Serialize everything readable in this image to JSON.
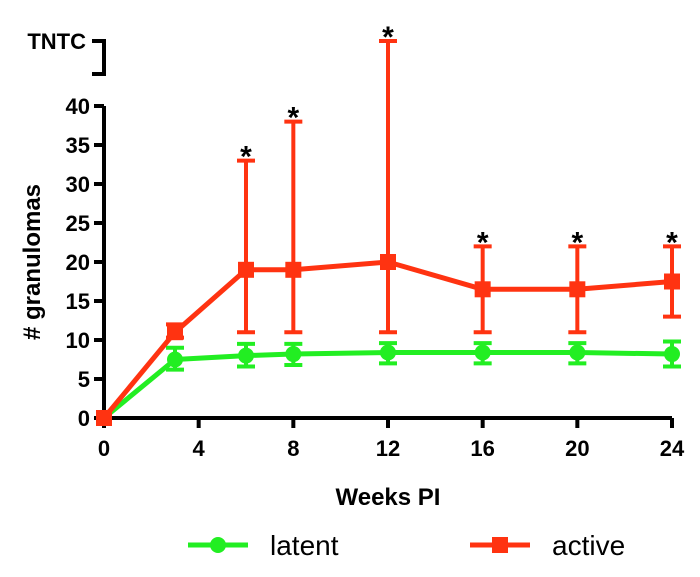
{
  "chart_data": {
    "type": "line",
    "title": "",
    "xlabel": "Weeks PI",
    "ylabel": "# granulomas",
    "x": [
      0,
      3,
      6,
      8,
      12,
      16,
      20,
      24
    ],
    "x_ticks": [
      "0",
      "4",
      "8",
      "12",
      "16",
      "20",
      "24"
    ],
    "y_ticks": [
      "0",
      "5",
      "10",
      "15",
      "20",
      "25",
      "30",
      "35",
      "40"
    ],
    "ylim": [
      0,
      40
    ],
    "upper_break_label": "TNTC",
    "significance_marker": "*",
    "series": [
      {
        "name": "latent",
        "color": "#22ee22",
        "marker": "circle",
        "values": [
          0,
          7.5,
          8,
          8.2,
          8.4,
          8.4,
          8.4,
          8.2
        ],
        "err_low": [
          0,
          6.2,
          6.6,
          6.8,
          7.0,
          7.0,
          7.0,
          6.6
        ],
        "err_high": [
          0,
          9.0,
          9.5,
          9.5,
          9.6,
          9.6,
          9.6,
          9.8
        ]
      },
      {
        "name": "active",
        "color": "#ff3311",
        "marker": "square",
        "values": [
          0,
          11,
          19,
          19,
          20,
          16.5,
          16.5,
          17.5
        ],
        "err_low": [
          0,
          10.3,
          11,
          11,
          11,
          11,
          11,
          13
        ],
        "err_high": [
          0,
          12,
          33,
          38,
          "TNTC",
          22,
          22,
          22
        ],
        "significant": [
          false,
          false,
          true,
          true,
          true,
          true,
          true,
          true
        ]
      }
    ],
    "legend": {
      "position": "bottom",
      "entries": [
        "latent",
        "active"
      ]
    }
  }
}
